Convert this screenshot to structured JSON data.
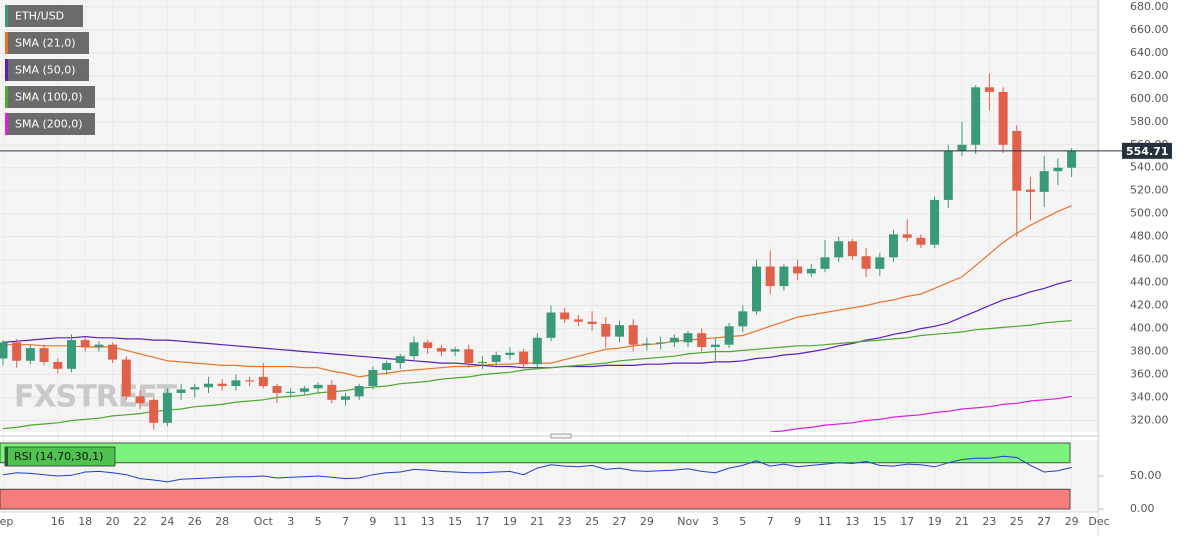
{
  "chart_data": {
    "type": "candlestick",
    "title": "ETH/USD",
    "watermark": "FXSTREET",
    "categories": [
      "Sep",
      null,
      null,
      null,
      "16",
      null,
      "18",
      null,
      "20",
      null,
      "22",
      null,
      "24",
      null,
      "26",
      null,
      "28",
      null,
      null,
      "Oct",
      null,
      "3",
      null,
      "5",
      null,
      "7",
      null,
      "9",
      null,
      "11",
      null,
      "13",
      null,
      "15",
      null,
      "17",
      null,
      "19",
      null,
      "21",
      null,
      "23",
      null,
      "25",
      null,
      "27",
      null,
      "29",
      null,
      null,
      "Nov",
      null,
      "3",
      null,
      "5",
      null,
      "7",
      null,
      "9",
      null,
      "11",
      null,
      "13",
      null,
      "15",
      null,
      "17",
      null,
      "19",
      null,
      "21",
      null,
      "23",
      null,
      "25",
      null,
      "27",
      null,
      "29",
      null,
      "Dec"
    ],
    "open": [
      374,
      388,
      372,
      383,
      371,
      365,
      390,
      384,
      386,
      373,
      341,
      338,
      318,
      344,
      347,
      349,
      352,
      350,
      355,
      358,
      350,
      344,
      345,
      348,
      351,
      338,
      341,
      350,
      364,
      370,
      376,
      388,
      383,
      380,
      382,
      370,
      371,
      377,
      380,
      369,
      392,
      414,
      408,
      406,
      404,
      393,
      403,
      386,
      387,
      388,
      388,
      396,
      384,
      386,
      402,
      415,
      454,
      437,
      454,
      448,
      452,
      462,
      476,
      463,
      452,
      462,
      482,
      479,
      473,
      512,
      555,
      560,
      610,
      606,
      572,
      521,
      519,
      537,
      540,
      null,
      null
    ],
    "high": [
      390,
      391,
      386,
      386,
      374,
      395,
      392,
      389,
      388,
      376,
      346,
      340,
      348,
      352,
      352,
      358,
      356,
      360,
      358,
      370,
      352,
      348,
      350,
      353,
      355,
      344,
      352,
      367,
      372,
      378,
      393,
      390,
      386,
      384,
      386,
      376,
      380,
      384,
      382,
      396,
      420,
      418,
      412,
      415,
      410,
      407,
      408,
      392,
      393,
      395,
      398,
      400,
      392,
      405,
      420,
      460,
      468,
      456,
      460,
      456,
      477,
      480,
      478,
      470,
      466,
      486,
      495,
      482,
      515,
      560,
      580,
      612,
      622,
      610,
      577,
      532,
      550,
      548,
      557,
      null,
      null
    ],
    "low": [
      368,
      366,
      369,
      368,
      361,
      362,
      380,
      380,
      370,
      338,
      330,
      312,
      315,
      338,
      340,
      344,
      346,
      346,
      350,
      348,
      335,
      340,
      342,
      344,
      335,
      333,
      338,
      347,
      360,
      365,
      372,
      378,
      376,
      376,
      366,
      365,
      368,
      373,
      366,
      366,
      389,
      405,
      402,
      398,
      383,
      388,
      380,
      381,
      382,
      384,
      384,
      380,
      372,
      383,
      397,
      412,
      430,
      433,
      442,
      445,
      449,
      458,
      460,
      445,
      446,
      458,
      476,
      470,
      470,
      505,
      550,
      552,
      590,
      553,
      480,
      494,
      506,
      525,
      532,
      null,
      null
    ],
    "close": [
      388,
      372,
      383,
      371,
      365,
      390,
      384,
      386,
      373,
      341,
      335,
      318,
      344,
      347,
      349,
      352,
      350,
      355,
      354,
      350,
      344,
      345,
      348,
      351,
      338,
      341,
      350,
      364,
      370,
      376,
      388,
      383,
      380,
      382,
      370,
      371,
      377,
      379,
      369,
      392,
      414,
      408,
      406,
      404,
      393,
      403,
      386,
      387,
      388,
      392,
      396,
      384,
      386,
      402,
      415,
      454,
      437,
      454,
      448,
      452,
      462,
      476,
      463,
      452,
      462,
      482,
      479,
      473,
      512,
      555,
      560,
      610,
      606,
      560,
      520,
      519,
      537,
      540,
      554.71,
      null,
      null
    ],
    "up_color": "#3a9a78",
    "down_color": "#e0604a",
    "last_price": 554.71,
    "series": [
      {
        "name": "SMA (21,0)",
        "color": "#e8742a",
        "values": [
          386,
          386,
          386,
          385,
          385,
          385,
          384,
          384,
          384,
          381,
          378,
          375,
          372,
          371,
          370,
          369,
          368,
          368,
          367,
          367,
          367,
          367,
          366,
          366,
          363,
          361,
          358,
          360,
          361,
          363,
          364,
          365,
          366,
          367,
          367,
          368,
          369,
          369,
          370,
          370,
          370,
          373,
          376,
          379,
          382,
          383,
          385,
          386,
          387,
          389,
          390,
          391,
          392,
          393,
          394,
          398,
          402,
          406,
          410,
          412,
          414,
          416,
          418,
          420,
          423,
          425,
          428,
          430,
          435,
          440,
          445,
          455,
          465,
          475,
          483,
          490,
          496,
          502,
          507,
          null,
          null
        ]
      },
      {
        "name": "SMA (50,0)",
        "color": "#5a1fb8",
        "values": [
          388,
          389,
          390,
          391,
          392,
          392,
          393,
          392,
          392,
          391,
          391,
          390,
          390,
          389,
          388,
          387,
          386,
          385,
          384,
          383,
          382,
          381,
          380,
          379,
          378,
          377,
          376,
          375,
          374,
          373,
          372,
          371,
          370,
          370,
          369,
          368,
          367,
          367,
          366,
          366,
          366,
          367,
          367,
          367,
          368,
          368,
          368,
          369,
          369,
          370,
          370,
          370,
          371,
          371,
          372,
          374,
          375,
          377,
          378,
          380,
          382,
          385,
          387,
          390,
          392,
          395,
          397,
          400,
          402,
          405,
          410,
          415,
          420,
          425,
          428,
          432,
          435,
          439,
          442,
          null,
          null
        ]
      },
      {
        "name": "SMA (100,0)",
        "color": "#4caa2c",
        "values": [
          313,
          314,
          316,
          317,
          318,
          320,
          321,
          322,
          324,
          325,
          326,
          328,
          329,
          330,
          332,
          333,
          334,
          336,
          337,
          338,
          340,
          341,
          342,
          344,
          345,
          346,
          348,
          349,
          350,
          352,
          353,
          354,
          356,
          357,
          358,
          360,
          361,
          362,
          364,
          365,
          366,
          367,
          368,
          369,
          370,
          372,
          373,
          374,
          375,
          376,
          378,
          379,
          380,
          380,
          381,
          382,
          383,
          384,
          385,
          385,
          386,
          387,
          388,
          389,
          390,
          391,
          392,
          394,
          395,
          396,
          397,
          399,
          400,
          401,
          402,
          403,
          405,
          406,
          407,
          null,
          null
        ]
      },
      {
        "name": "SMA (200,0)",
        "color": "#e01ee0",
        "values": [
          null,
          null,
          null,
          null,
          null,
          null,
          null,
          null,
          null,
          null,
          null,
          null,
          null,
          null,
          null,
          null,
          null,
          null,
          null,
          null,
          null,
          null,
          null,
          null,
          null,
          null,
          null,
          null,
          null,
          null,
          null,
          null,
          null,
          null,
          null,
          null,
          null,
          null,
          null,
          null,
          null,
          null,
          null,
          null,
          null,
          null,
          null,
          null,
          null,
          null,
          null,
          null,
          null,
          null,
          null,
          null,
          310,
          311,
          313,
          314,
          316,
          317,
          318,
          320,
          321,
          323,
          324,
          325,
          327,
          328,
          330,
          331,
          332,
          334,
          335,
          337,
          338,
          339,
          341,
          null,
          null
        ]
      }
    ],
    "ylim": [
      310,
      686
    ],
    "yticks": [
      {
        "value": 320,
        "label": "320.00"
      },
      {
        "value": 340,
        "label": "340.00"
      },
      {
        "value": 360,
        "label": "360.00"
      },
      {
        "value": 380,
        "label": "380.00"
      },
      {
        "value": 400,
        "label": "400.00"
      },
      {
        "value": 420,
        "label": "420.00"
      },
      {
        "value": 440,
        "label": "440.00"
      },
      {
        "value": 460,
        "label": "460.00"
      },
      {
        "value": 480,
        "label": "480.00"
      },
      {
        "value": 500,
        "label": "500.00"
      },
      {
        "value": 520,
        "label": "520.00"
      },
      {
        "value": 540,
        "label": "540.00"
      },
      {
        "value": 560,
        "label": "560.00"
      },
      {
        "value": 580,
        "label": "580.00"
      },
      {
        "value": 600,
        "label": "600.00"
      },
      {
        "value": 620,
        "label": "620.00"
      },
      {
        "value": 640,
        "label": "640.00"
      },
      {
        "value": 660,
        "label": "660.00"
      },
      {
        "value": 680,
        "label": "680.00"
      }
    ],
    "grid": true,
    "rsi": {
      "name": "RSI (14,70,30,1)",
      "color": "#1f3fd0",
      "overbought": 70,
      "oversold": 30,
      "ylim": [
        0,
        100
      ],
      "yticks": [
        {
          "value": 0,
          "label": "0.00"
        },
        {
          "value": 50,
          "label": "50.00"
        }
      ],
      "values": [
        52,
        55,
        54,
        52,
        50,
        51,
        56,
        57,
        55,
        52,
        46,
        44,
        41,
        45,
        46,
        47,
        48,
        49,
        49,
        50,
        47,
        48,
        49,
        50,
        48,
        46,
        47,
        52,
        55,
        56,
        60,
        59,
        57,
        56,
        55,
        55,
        56,
        57,
        52,
        62,
        67,
        65,
        64,
        66,
        60,
        62,
        58,
        57,
        58,
        59,
        61,
        57,
        55,
        62,
        66,
        73,
        65,
        68,
        64,
        66,
        68,
        70,
        69,
        72,
        66,
        65,
        68,
        67,
        64,
        70,
        75,
        77,
        77,
        80,
        78,
        66,
        56,
        58,
        63,
        null,
        null
      ]
    }
  }
}
